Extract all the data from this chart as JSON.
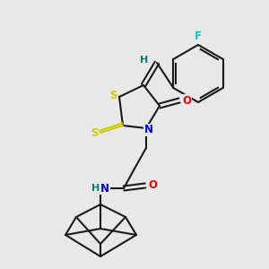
{
  "bg_color": "#e8e8e8",
  "bond_color": "#1a1a1a",
  "colors": {
    "S": "#cccc00",
    "N": "#0000ff",
    "O": "#ff0000",
    "F": "#00cccc",
    "H_label": "#008080",
    "C": "#1a1a1a"
  },
  "figsize": [
    3.0,
    3.0
  ],
  "dpi": 100
}
